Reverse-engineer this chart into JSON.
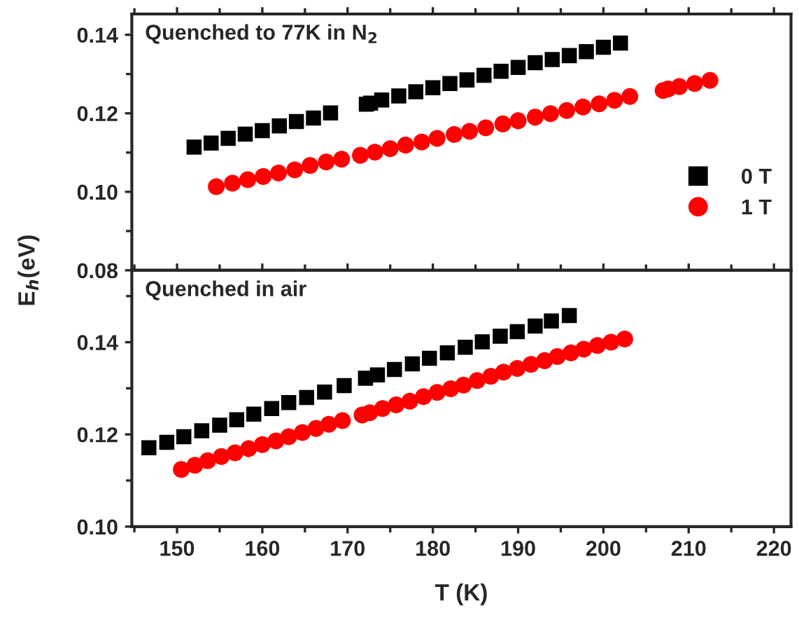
{
  "chart_data": [
    {
      "type": "scatter",
      "ylabel": "E$_{h}$(eV)",
      "annotations": [
        "Quenched to 77K in N$_{2}$"
      ],
      "legend": "right",
      "tick_labels": "y",
      "xlim": [
        144.7,
        222
      ],
      "xticks": [
        150,
        160,
        170,
        180,
        190,
        200,
        210,
        220
      ],
      "ylim": [
        0.08,
        0.1453
      ],
      "yticks": [
        {
          "value": 0.08,
          "label": "0.08"
        },
        {
          "value": 0.1,
          "label": "0.10"
        },
        {
          "value": 0.12,
          "label": "0.12"
        },
        {
          "value": 0.14,
          "label": "0.14"
        }
      ],
      "series": [
        {
          "name": "0 T",
          "color": "#000000",
          "marker": "square",
          "x": [
            152,
            154,
            156,
            158,
            160,
            162,
            164,
            166,
            168,
            172.2,
            172.7,
            174,
            176,
            178,
            180,
            182,
            184,
            186,
            188,
            190,
            192,
            194,
            196,
            198,
            200,
            202
          ],
          "values": [
            0.1114,
            0.1124,
            0.1136,
            0.1147,
            0.1156,
            0.1168,
            0.1179,
            0.1188,
            0.1201,
            0.1223,
            0.1226,
            0.1234,
            0.1244,
            0.1255,
            0.1265,
            0.1276,
            0.1285,
            0.1297,
            0.1307,
            0.1317,
            0.1329,
            0.1337,
            0.1347,
            0.1357,
            0.1368,
            0.1379
          ]
        },
        {
          "name": "1 T",
          "color": "#ff0000",
          "marker": "circle",
          "x": [
            154.6,
            156.5,
            158.3,
            160.1,
            161.9,
            163.8,
            165.6,
            167.5,
            169.3,
            171.5,
            173.2,
            175.0,
            176.8,
            178.7,
            180.5,
            182.5,
            184.3,
            186.2,
            188.2,
            190.0,
            192.0,
            193.8,
            195.7,
            197.6,
            199.5,
            201.3,
            203.1,
            207.0,
            207.6,
            208.9,
            210.7,
            212.5
          ],
          "values": [
            0.1013,
            0.1022,
            0.1031,
            0.1039,
            0.1048,
            0.1056,
            0.1067,
            0.1076,
            0.1083,
            0.1093,
            0.1101,
            0.111,
            0.1119,
            0.1127,
            0.1136,
            0.1146,
            0.1154,
            0.1163,
            0.1173,
            0.1181,
            0.119,
            0.1199,
            0.1207,
            0.1216,
            0.1224,
            0.1233,
            0.1243,
            0.1258,
            0.1262,
            0.1268,
            0.1276,
            0.1284
          ]
        }
      ]
    },
    {
      "type": "scatter",
      "xlabel": "T (K)",
      "annotations": [
        "Quenched in air"
      ],
      "xlim": [
        144.7,
        222
      ],
      "xticks": [
        150,
        160,
        170,
        180,
        190,
        200,
        210,
        220
      ],
      "ylim": [
        0.1,
        0.1556
      ],
      "yticks": [
        {
          "value": 0.1,
          "label": "0.10"
        },
        {
          "value": 0.12,
          "label": "0.12"
        },
        {
          "value": 0.14,
          "label": "0.14"
        }
      ],
      "series": [
        {
          "color": "#000000",
          "marker": "square",
          "x": [
            146.7,
            148.8,
            150.8,
            152.9,
            155.0,
            157.0,
            159.0,
            161.1,
            163.1,
            165.2,
            167.3,
            169.6,
            172.1,
            173.5,
            175.5,
            177.6,
            179.6,
            181.7,
            183.8,
            185.8,
            187.9,
            189.9,
            192.0,
            193.9,
            196.0
          ],
          "values": [
            0.1171,
            0.1183,
            0.1195,
            0.1208,
            0.122,
            0.1232,
            0.1244,
            0.1256,
            0.1269,
            0.128,
            0.1292,
            0.1306,
            0.1322,
            0.1329,
            0.1341,
            0.1353,
            0.1365,
            0.1377,
            0.1389,
            0.1401,
            0.1413,
            0.1423,
            0.1435,
            0.1446,
            0.1458
          ]
        },
        {
          "color": "#ff0000",
          "marker": "circle",
          "x": [
            150.5,
            152.1,
            153.6,
            155.2,
            156.8,
            158.4,
            160.0,
            161.6,
            163.1,
            164.7,
            166.3,
            167.8,
            169.4,
            171.7,
            172.6,
            174.1,
            175.7,
            177.3,
            178.9,
            180.5,
            182.1,
            183.6,
            185.2,
            186.8,
            188.3,
            189.9,
            191.5,
            193.1,
            194.6,
            196.2,
            197.7,
            199.3,
            200.9,
            202.5
          ],
          "values": [
            0.1124,
            0.1133,
            0.1143,
            0.1152,
            0.116,
            0.1169,
            0.1178,
            0.1186,
            0.1195,
            0.1204,
            0.1213,
            0.1222,
            0.123,
            0.1242,
            0.1247,
            0.1256,
            0.1264,
            0.1272,
            0.1282,
            0.1291,
            0.1299,
            0.1307,
            0.1317,
            0.1326,
            0.1335,
            0.1343,
            0.1352,
            0.136,
            0.1369,
            0.1377,
            0.1385,
            0.1393,
            0.14,
            0.1407
          ]
        }
      ]
    }
  ]
}
